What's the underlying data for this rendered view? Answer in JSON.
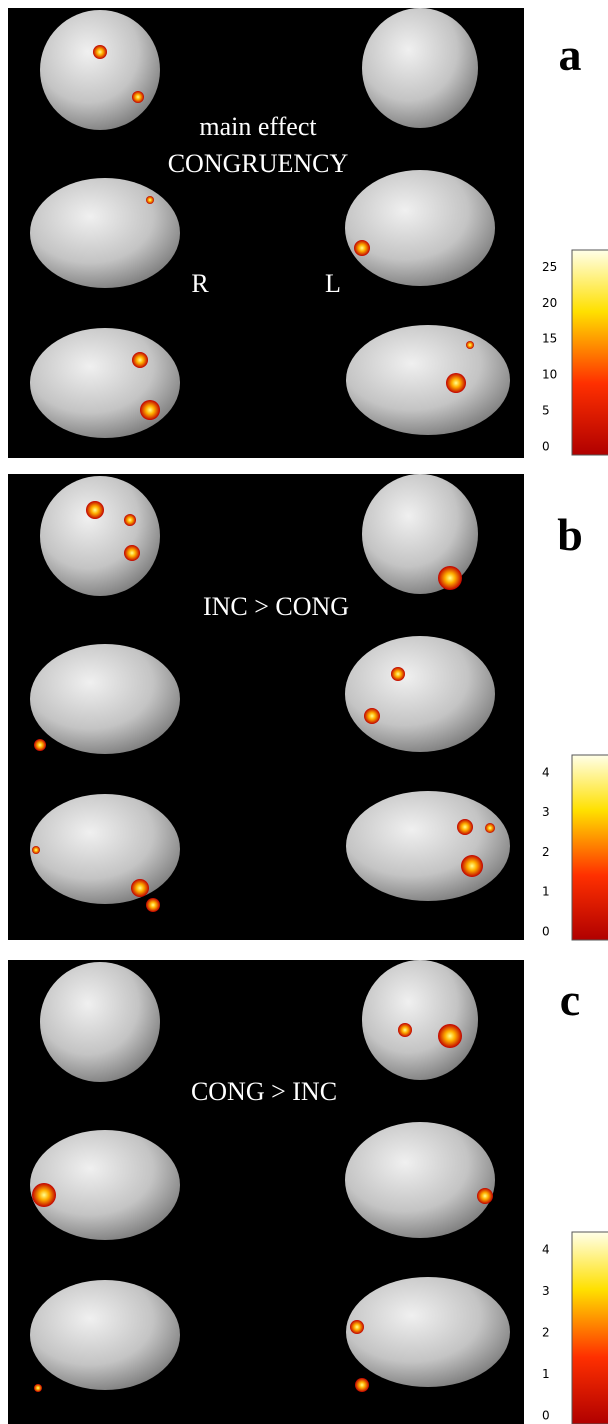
{
  "panels": [
    {
      "letter": "a",
      "title": [
        "main effect",
        "CONGRUENCY"
      ],
      "hemisphere_labels": [
        "R",
        "L"
      ],
      "colorbar_ticks": [
        25,
        20,
        15,
        10,
        5,
        0
      ]
    },
    {
      "letter": "b",
      "title": [
        "INC > CONG"
      ],
      "colorbar_ticks": [
        4,
        3,
        2,
        1,
        0
      ]
    },
    {
      "letter": "c",
      "title": [
        "CONG > INC"
      ],
      "colorbar_ticks": [
        4,
        3,
        2,
        1,
        0
      ]
    }
  ]
}
